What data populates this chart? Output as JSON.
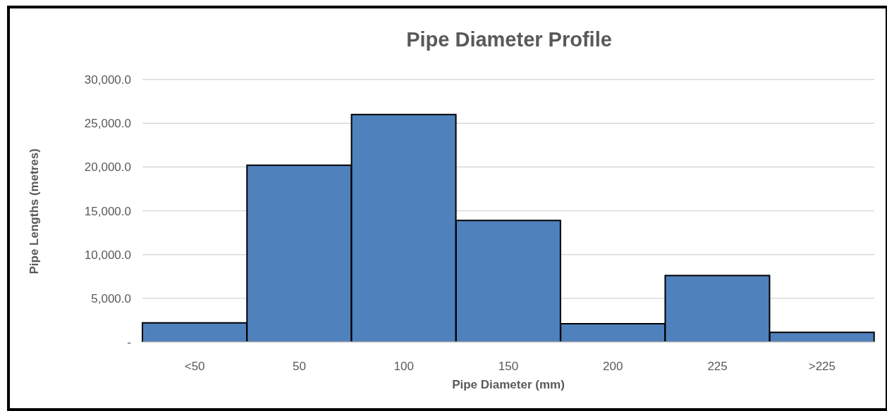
{
  "chart_data": {
    "type": "bar",
    "title": "Pipe Diameter Profile",
    "xlabel": "Pipe Diameter (mm)",
    "ylabel": "Pipe Lengths (metres)",
    "categories": [
      "<50",
      "50",
      "100",
      "150",
      "200",
      "225",
      ">225"
    ],
    "values": [
      2200,
      20200,
      26000,
      13900,
      2100,
      7600,
      1100
    ],
    "color": "#4f81bd",
    "ylim": [
      0,
      30000
    ],
    "yticks": [
      {
        "value": 0,
        "label": "-"
      },
      {
        "value": 5000,
        "label": "5,000.0"
      },
      {
        "value": 10000,
        "label": "10,000.0"
      },
      {
        "value": 15000,
        "label": "15,000.0"
      },
      {
        "value": 20000,
        "label": "20,000.0"
      },
      {
        "value": 25000,
        "label": "25,000.0"
      },
      {
        "value": 30000,
        "label": "30,000.0"
      }
    ],
    "grid": "y"
  }
}
